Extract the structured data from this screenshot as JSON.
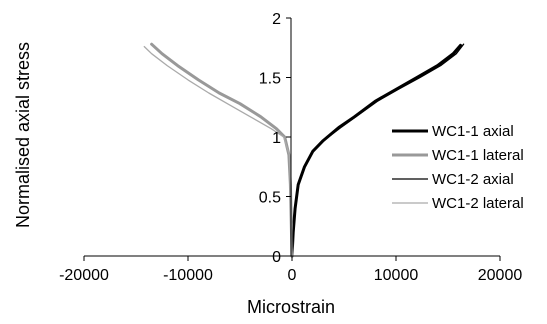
{
  "chart_data": {
    "type": "line",
    "title": "",
    "xlabel": "Microstrain",
    "ylabel": "Normalised axial stress",
    "xlim": [
      -20000,
      20000
    ],
    "ylim": [
      0,
      2
    ],
    "x_ticks": [
      -20000,
      -10000,
      0,
      10000,
      20000
    ],
    "y_ticks": [
      0,
      0.5,
      1,
      1.5,
      2
    ],
    "x_tick_labels": [
      "-20000",
      "-10000",
      "0",
      "10000",
      "20000"
    ],
    "y_tick_labels": [
      "0",
      "0.5",
      "1",
      "1.5",
      "2"
    ],
    "grid": false,
    "legend_position": "right",
    "series": [
      {
        "name": "WC1-1 axial",
        "color": "#000000",
        "style": "thick",
        "points": [
          [
            0,
            0
          ],
          [
            120,
            0.2
          ],
          [
            300,
            0.4
          ],
          [
            600,
            0.6
          ],
          [
            1200,
            0.75
          ],
          [
            2000,
            0.88
          ],
          [
            3000,
            0.97
          ],
          [
            4500,
            1.08
          ],
          [
            6000,
            1.17
          ],
          [
            8000,
            1.3
          ],
          [
            10000,
            1.4
          ],
          [
            12000,
            1.5
          ],
          [
            14000,
            1.6
          ],
          [
            15500,
            1.7
          ],
          [
            16200,
            1.77
          ]
        ]
      },
      {
        "name": "WC1-1 lateral",
        "color": "#999999",
        "style": "thick",
        "points": [
          [
            0,
            0
          ],
          [
            -80,
            0.3
          ],
          [
            -150,
            0.6
          ],
          [
            -300,
            0.85
          ],
          [
            -700,
            1.0
          ],
          [
            -1500,
            1.07
          ],
          [
            -3000,
            1.17
          ],
          [
            -5000,
            1.28
          ],
          [
            -7000,
            1.37
          ],
          [
            -9000,
            1.48
          ],
          [
            -11000,
            1.6
          ],
          [
            -12500,
            1.7
          ],
          [
            -13500,
            1.78
          ]
        ]
      },
      {
        "name": "WC1-2 axial",
        "color": "#000000",
        "style": "thin",
        "points": [
          [
            0,
            0
          ],
          [
            100,
            0.2
          ],
          [
            280,
            0.4
          ],
          [
            650,
            0.6
          ],
          [
            1300,
            0.76
          ],
          [
            2100,
            0.89
          ],
          [
            3200,
            0.98
          ],
          [
            4700,
            1.08
          ],
          [
            6300,
            1.18
          ],
          [
            8200,
            1.3
          ],
          [
            10200,
            1.4
          ],
          [
            12300,
            1.5
          ],
          [
            14300,
            1.6
          ],
          [
            15800,
            1.7
          ],
          [
            16500,
            1.78
          ]
        ]
      },
      {
        "name": "WC1-2 lateral",
        "color": "#aaaaaa",
        "style": "thin",
        "points": [
          [
            0,
            0
          ],
          [
            -60,
            0.3
          ],
          [
            -120,
            0.6
          ],
          [
            -250,
            0.85
          ],
          [
            -800,
            1.0
          ],
          [
            -2000,
            1.07
          ],
          [
            -4000,
            1.17
          ],
          [
            -6000,
            1.27
          ],
          [
            -8000,
            1.37
          ],
          [
            -10000,
            1.48
          ],
          [
            -12000,
            1.6
          ],
          [
            -13500,
            1.7
          ],
          [
            -14200,
            1.76
          ]
        ]
      }
    ]
  }
}
